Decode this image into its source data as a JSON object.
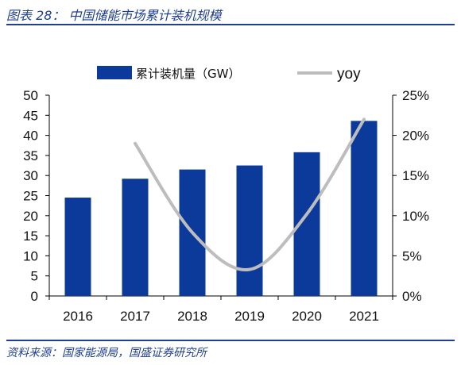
{
  "figure": {
    "title": "图表 28： 中国储能市场累计装机规模",
    "source": "资料来源：国家能源局，国盛证券研究所"
  },
  "chart_data": {
    "type": "bar",
    "categories": [
      "2016",
      "2017",
      "2018",
      "2019",
      "2020",
      "2021"
    ],
    "series": [
      {
        "name": "累计装机量（GW）",
        "type": "bar",
        "axis": "left",
        "color": "#0b3a9b",
        "values": [
          24.5,
          29.2,
          31.5,
          32.5,
          35.8,
          43.6
        ]
      },
      {
        "name": "yoy",
        "type": "line",
        "axis": "right",
        "color": "#bdbdbd",
        "values": [
          null,
          19.0,
          7.9,
          3.3,
          10.2,
          22.0
        ]
      }
    ],
    "y_left": {
      "ylim": [
        0,
        50
      ],
      "ticks": [
        "0",
        "5",
        "10",
        "15",
        "20",
        "25",
        "30",
        "35",
        "40",
        "45",
        "50"
      ]
    },
    "y_right": {
      "ylim": [
        0,
        25
      ],
      "ticks": [
        "0%",
        "5%",
        "10%",
        "15%",
        "20%",
        "25%"
      ]
    },
    "legend_position": "top",
    "grid": false
  }
}
